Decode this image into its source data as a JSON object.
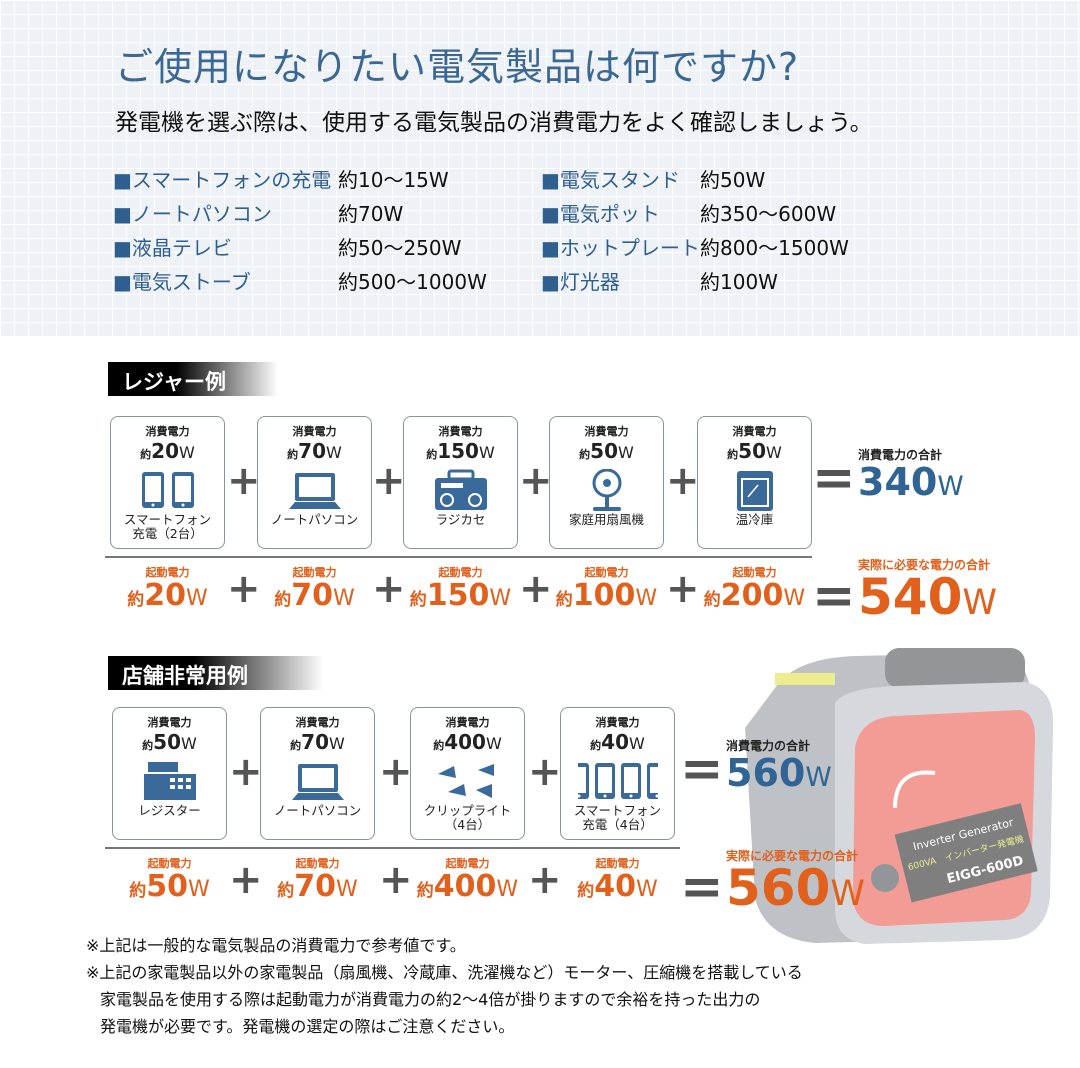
{
  "header": {
    "title": "ご使用になりたい電気製品は何ですか?",
    "subtitle": "発電機を選ぶ際は、使用する電気製品の消費電力をよく確認しましょう。"
  },
  "appliances": [
    {
      "label": "■スマートフォンの充電",
      "value": "約10～15W"
    },
    {
      "label": "■ノートパソコン",
      "value": "約70W"
    },
    {
      "label": "■液晶テレビ",
      "value": "約50～250W"
    },
    {
      "label": "■電気ストーブ",
      "value": "約500～1000W"
    },
    {
      "label": "■電気スタンド",
      "value": "約50W"
    },
    {
      "label": "■電気ポット",
      "value": "約350～600W"
    },
    {
      "label": "■ホットプレート",
      "value": "約800～1500W"
    },
    {
      "label": "■灯光器",
      "value": "約100W"
    }
  ],
  "common": {
    "consumption": "消費電力",
    "startup": "起動電力",
    "approx": "約",
    "unit": "W",
    "total_label": "消費電力の合計",
    "actual_label": "実際に必要な電力の合計",
    "plus": "+",
    "equals": "="
  },
  "leisure": {
    "title": "レジャー例",
    "items": [
      {
        "name": "スマートフォン\n充電（2台）",
        "consumption": "20",
        "startup": "20",
        "icon": "smartphones-icon"
      },
      {
        "name": "ノートパソコン",
        "consumption": "70",
        "startup": "70",
        "icon": "laptop-icon"
      },
      {
        "name": "ラジカセ",
        "consumption": "150",
        "startup": "150",
        "icon": "radio-cassette-icon"
      },
      {
        "name": "家庭用扇風機",
        "consumption": "50",
        "startup": "100",
        "icon": "fan-icon"
      },
      {
        "name": "温冷庫",
        "consumption": "50",
        "startup": "200",
        "icon": "warmer-cooler-icon"
      }
    ],
    "total": "340",
    "actual": "540"
  },
  "store": {
    "title": "店舗非常用例",
    "items": [
      {
        "name": "レジスター",
        "consumption": "50",
        "startup": "50",
        "icon": "cash-register-icon"
      },
      {
        "name": "ノートパソコン",
        "consumption": "70",
        "startup": "70",
        "icon": "laptop-icon"
      },
      {
        "name": "クリップライト\n（4台）",
        "consumption": "400",
        "startup": "400",
        "icon": "clip-lights-icon"
      },
      {
        "name": "スマートフォン\n充電（4台）",
        "consumption": "40",
        "startup": "40",
        "icon": "smartphones-icon"
      }
    ],
    "total": "560",
    "actual": "560"
  },
  "product": {
    "brand_text": "Inverter Generator",
    "label_jp": "インバーター発電機",
    "capacity": "600VA",
    "model": "EIGG-600D"
  },
  "notes": [
    "※上記は一般的な電気製品の消費電力で参考値です。",
    "※上記の家電製品以外の家電製品（扇風機、冷蔵庫、洗濯機など）モーター、圧縮機を搭載している",
    "家電製品を使用する際は起動電力が消費電力の約2～4倍が掛りますので余裕を持った出力の",
    "発電機が必要です。発電機の選定の際はご注意ください。"
  ],
  "colors": {
    "blue": "#2f6495",
    "orange": "#e0601c",
    "product_red": "#f07a72"
  }
}
